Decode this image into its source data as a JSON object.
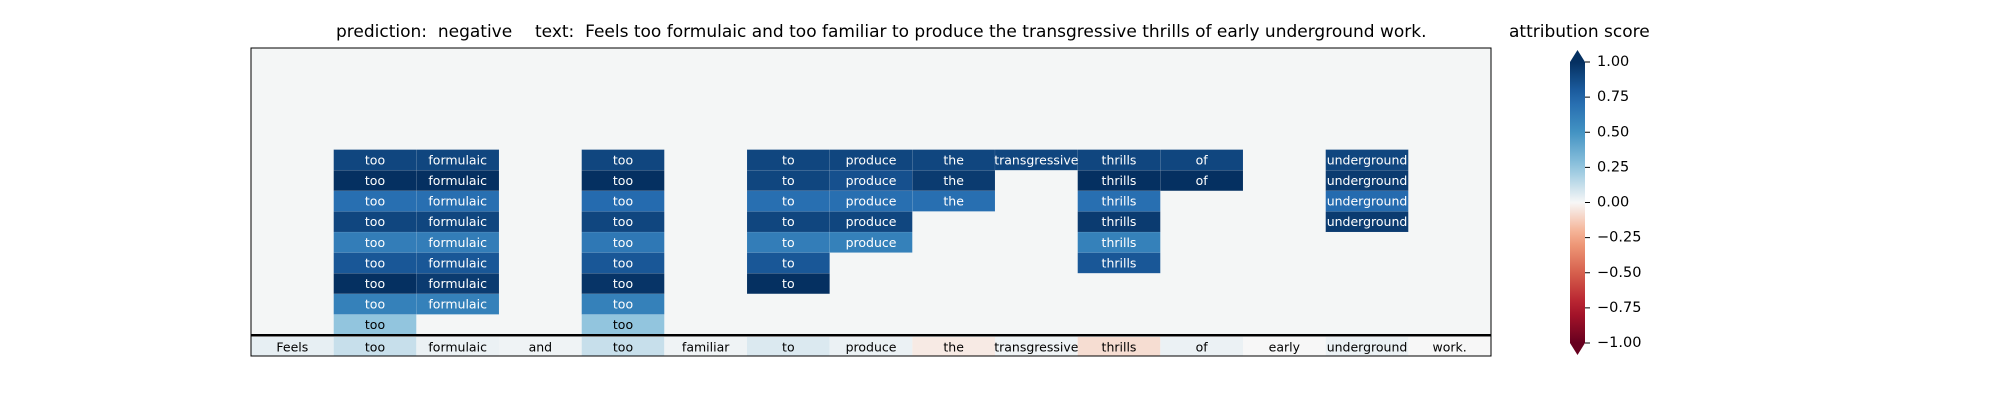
{
  "header": {
    "prediction_label": "prediction:",
    "prediction_value": "negative",
    "text_label": "text:",
    "text_value": "Feels too formulaic and too familiar to produce the transgressive thrills of early underground work.",
    "colorbar_title": "attribution score"
  },
  "chart_data": {
    "type": "heatmap",
    "tokens": [
      "Feels",
      "too",
      "formulaic",
      "and",
      "too",
      "familiar",
      "to",
      "produce",
      "the",
      "transgressive",
      "thrills",
      "of",
      "early",
      "underground",
      "work."
    ],
    "baseline_scores": [
      0.04,
      0.12,
      0.03,
      0.02,
      0.12,
      0.02,
      0.07,
      0.03,
      -0.04,
      0.02,
      -0.08,
      0.03,
      0.0,
      0.03,
      0.0
    ],
    "layers": [
      [
        0.0,
        0.25,
        0.0,
        0.0,
        0.25,
        0.0,
        0.0,
        0.0,
        0.0,
        0.0,
        0.0,
        0.0,
        0.0,
        0.0,
        0.0
      ],
      [
        0.0,
        0.6,
        0.6,
        0.0,
        0.6,
        0.0,
        0.0,
        0.0,
        0.0,
        0.0,
        0.0,
        0.0,
        0.0,
        0.0,
        0.0
      ],
      [
        0.0,
        1.0,
        0.95,
        0.0,
        0.98,
        0.0,
        1.0,
        0.0,
        0.0,
        0.0,
        0.0,
        0.0,
        0.0,
        0.0,
        0.0
      ],
      [
        0.0,
        0.82,
        0.82,
        0.0,
        0.82,
        0.0,
        0.82,
        0.0,
        0.0,
        0.0,
        0.82,
        0.0,
        0.0,
        0.0,
        0.0
      ],
      [
        0.0,
        0.62,
        0.62,
        0.0,
        0.65,
        0.0,
        0.62,
        0.6,
        0.0,
        0.0,
        0.6,
        0.0,
        0.0,
        0.0,
        0.0
      ],
      [
        0.0,
        0.9,
        0.9,
        0.0,
        0.9,
        0.0,
        0.9,
        0.9,
        0.0,
        0.0,
        0.95,
        0.0,
        0.0,
        0.95,
        0.0
      ],
      [
        0.0,
        0.7,
        0.7,
        0.0,
        0.72,
        0.0,
        0.7,
        0.7,
        0.7,
        0.0,
        0.7,
        0.0,
        0.0,
        0.72,
        0.0
      ],
      [
        0.0,
        1.0,
        1.0,
        0.0,
        1.0,
        0.0,
        0.9,
        0.85,
        0.95,
        0.0,
        1.0,
        1.0,
        0.0,
        0.95,
        0.0
      ],
      [
        0.0,
        0.9,
        0.9,
        0.0,
        0.9,
        0.0,
        0.9,
        0.9,
        0.9,
        0.9,
        0.9,
        0.9,
        0.0,
        0.9,
        0.0
      ]
    ],
    "colorbar": {
      "colormap": "RdBu",
      "range": [
        -1.0,
        1.0
      ],
      "ticks": [
        "1.00",
        "0.75",
        "0.50",
        "0.25",
        "0.00",
        "−0.25",
        "−0.50",
        "−0.75",
        "−1.00"
      ]
    },
    "colors": {
      "panel_background": "#f4f6f6",
      "positive": "#053061",
      "negative": "#67001f",
      "neutral": "#f7f7f7"
    }
  }
}
